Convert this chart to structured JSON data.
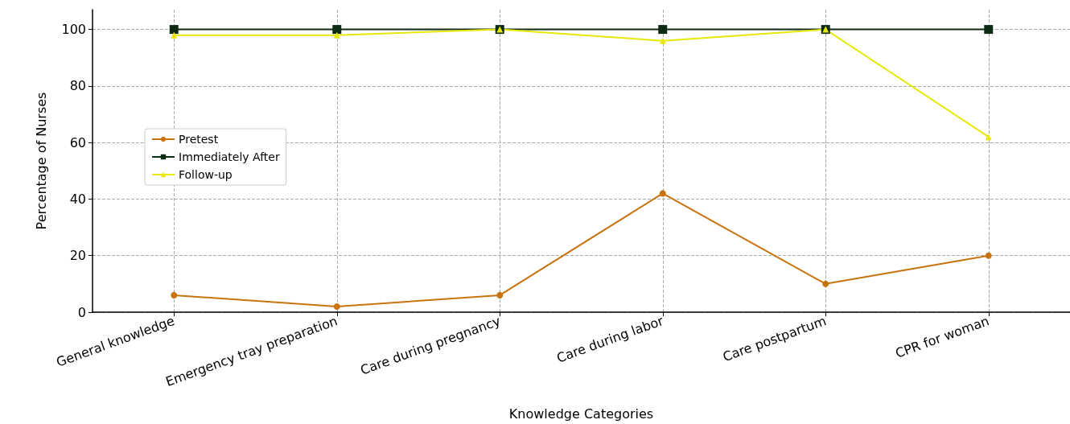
{
  "chart_data": {
    "type": "line",
    "xlabel": "Knowledge Categories",
    "ylabel": "Percentage of Nurses",
    "categories": [
      "General knowledge",
      "Emergency tray preparation",
      "Care during pregnancy",
      "Care during labor",
      "Care postpartum",
      "CPR for woman"
    ],
    "series": [
      {
        "name": "Pretest",
        "color": "#c8740e",
        "marker": "circle",
        "values": [
          6,
          2,
          6,
          42,
          10,
          20
        ]
      },
      {
        "name": "Immediately After",
        "color": "#0f2a12",
        "marker": "square",
        "values": [
          100,
          100,
          100,
          100,
          100,
          100
        ]
      },
      {
        "name": "Follow-up",
        "color": "#e8e80a",
        "marker": "triangle",
        "values": [
          98,
          98,
          100,
          96,
          100,
          62
        ]
      }
    ],
    "ylim": [
      0,
      107
    ],
    "yticks": [
      0,
      20,
      40,
      60,
      80,
      100
    ],
    "grid": true,
    "legend": "left",
    "line_style": "solid"
  }
}
